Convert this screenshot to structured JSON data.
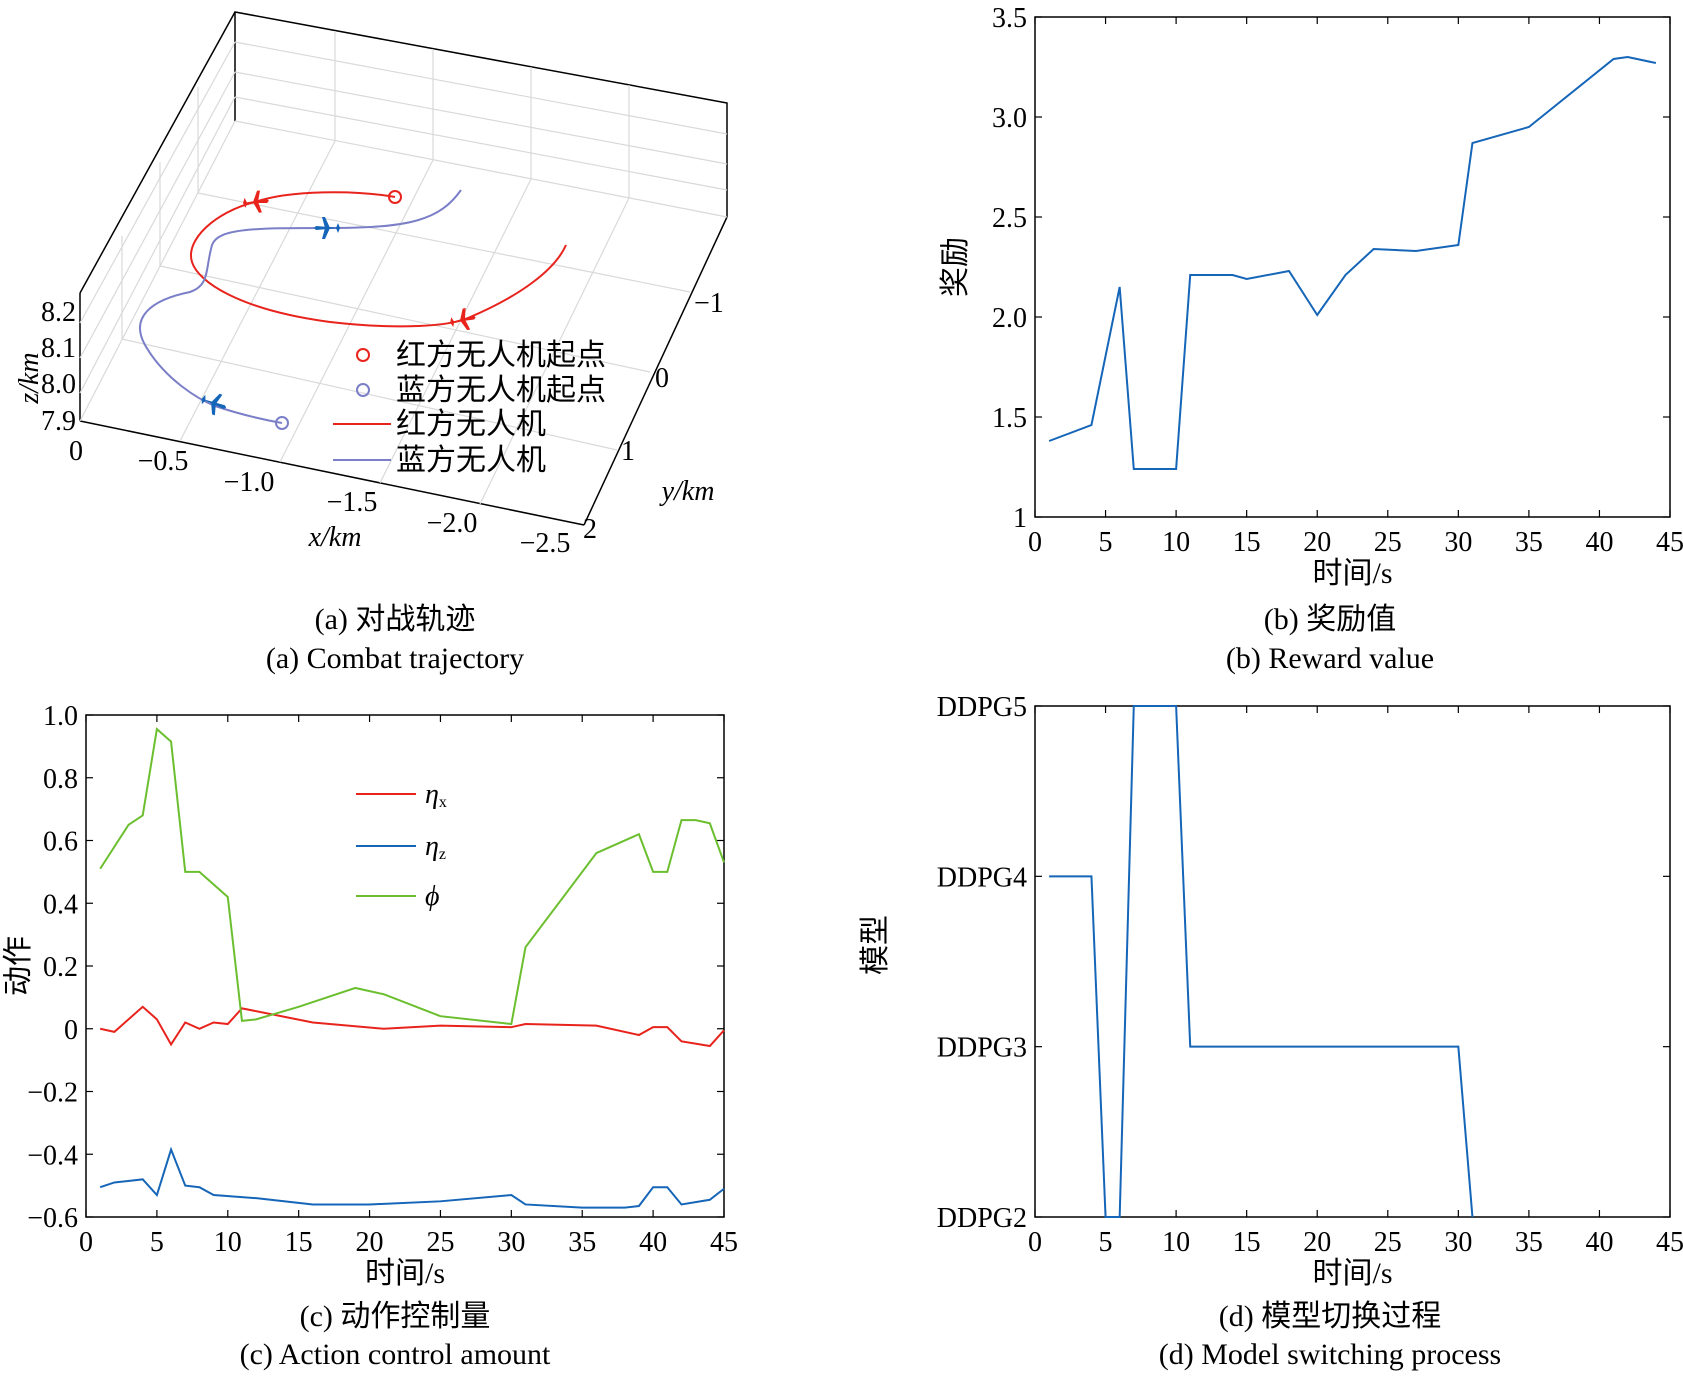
{
  "colors": {
    "red": "#e8231c",
    "blue": "#1565b8",
    "lightblue": "#7a7fc8",
    "green": "#6bbf2f",
    "axis": "#000000",
    "grid": "#d9d9d9"
  },
  "captions": {
    "a_cn": "(a) 对战轨迹",
    "a_en": "(a) Combat trajectory",
    "b_cn": "(b) 奖励值",
    "b_en": "(b) Reward value",
    "c_cn": "(c) 动作控制量",
    "c_en": "(c) Action control amount",
    "d_cn": "(d) 模型切换过程",
    "d_en": "(d) Model switching process"
  },
  "chart_data": [
    {
      "id": "a",
      "type": "line",
      "projection": "3d",
      "xlabel": "x/km",
      "ylabel": "y/km",
      "zlabel": "z/km",
      "x_ticks": [
        "0",
        "−0.5",
        "−1.0",
        "−1.5",
        "−2.0",
        "−2.5"
      ],
      "y_ticks": [
        "−1",
        "0",
        "1",
        "2"
      ],
      "z_ticks": [
        "7.9",
        "8.0",
        "8.1",
        "8.2"
      ],
      "legend": [
        {
          "label": "红方无人机起点",
          "marker": "circle",
          "color": "red"
        },
        {
          "label": "蓝方无人机起点",
          "marker": "circle",
          "color": "lightblue"
        },
        {
          "label": "红方无人机",
          "marker": "line",
          "color": "red"
        },
        {
          "label": "蓝方无人机",
          "marker": "line",
          "color": "lightblue"
        }
      ],
      "legend_position": "right"
    },
    {
      "id": "b",
      "type": "line",
      "xlabel": "时间/s",
      "ylabel": "奖励",
      "xlim": [
        0,
        45
      ],
      "ylim": [
        1,
        3.5
      ],
      "x_ticks": [
        "0",
        "5",
        "10",
        "15",
        "20",
        "25",
        "30",
        "35",
        "40",
        "45"
      ],
      "y_ticks": [
        "1",
        "1.5",
        "2.0",
        "2.5",
        "3.0",
        "3.5"
      ],
      "series": [
        {
          "color": "blue",
          "x": [
            1,
            4,
            6,
            7,
            10,
            11,
            14,
            15,
            18,
            20,
            22,
            24,
            27,
            30,
            31,
            35,
            41,
            42,
            44
          ],
          "y": [
            1.38,
            1.46,
            2.15,
            1.24,
            1.24,
            2.21,
            2.21,
            2.19,
            2.23,
            2.01,
            2.21,
            2.34,
            2.33,
            2.36,
            2.87,
            2.95,
            3.29,
            3.3,
            3.27
          ]
        }
      ]
    },
    {
      "id": "c",
      "type": "line",
      "xlabel": "时间/s",
      "ylabel": "动作",
      "xlim": [
        0,
        45
      ],
      "ylim": [
        -0.6,
        1.0
      ],
      "x_ticks": [
        "0",
        "5",
        "10",
        "15",
        "20",
        "25",
        "30",
        "35",
        "40",
        "45"
      ],
      "y_ticks": [
        "−0.6",
        "−0.4",
        "−0.2",
        "0",
        "0.2",
        "0.4",
        "0.6",
        "0.8",
        "1.0"
      ],
      "legend_position": "top-center",
      "series": [
        {
          "name": "η",
          "sub": "x",
          "color": "red",
          "x": [
            1,
            2,
            4,
            5,
            6,
            7,
            8,
            9,
            10,
            11,
            16,
            21,
            25,
            30,
            31,
            36,
            39,
            40,
            41,
            42,
            44,
            45
          ],
          "y": [
            0.0,
            -0.01,
            0.07,
            0.03,
            -0.05,
            0.02,
            0.0,
            0.02,
            0.015,
            0.065,
            0.02,
            0.0,
            0.01,
            0.005,
            0.015,
            0.01,
            -0.02,
            0.005,
            0.005,
            -0.04,
            -0.055,
            -0.005
          ]
        },
        {
          "name": "η",
          "sub": "z",
          "color": "blue",
          "x": [
            1,
            2,
            4,
            5,
            6,
            7,
            8,
            9,
            12,
            16,
            20,
            25,
            30,
            31,
            35,
            38,
            39,
            40,
            41,
            42,
            44,
            45
          ],
          "y": [
            -0.505,
            -0.49,
            -0.48,
            -0.53,
            -0.385,
            -0.5,
            -0.505,
            -0.53,
            -0.54,
            -0.56,
            -0.56,
            -0.55,
            -0.53,
            -0.56,
            -0.57,
            -0.57,
            -0.565,
            -0.505,
            -0.505,
            -0.56,
            -0.545,
            -0.51
          ]
        },
        {
          "name": "ϕ",
          "sub": "",
          "color": "green",
          "x": [
            1,
            3,
            4,
            5,
            6,
            7,
            8,
            10,
            11,
            12,
            15,
            19,
            21,
            25,
            30,
            31,
            36,
            39,
            40,
            41,
            42,
            43,
            44,
            45
          ],
          "y": [
            0.51,
            0.65,
            0.68,
            0.955,
            0.915,
            0.5,
            0.5,
            0.42,
            0.025,
            0.03,
            0.07,
            0.13,
            0.11,
            0.04,
            0.015,
            0.26,
            0.56,
            0.62,
            0.5,
            0.5,
            0.665,
            0.665,
            0.655,
            0.53
          ]
        }
      ]
    },
    {
      "id": "d",
      "type": "line",
      "xlabel": "时间/s",
      "ylabel": "模型",
      "xlim": [
        0,
        45
      ],
      "ylim": [
        2,
        5
      ],
      "x_ticks": [
        "0",
        "5",
        "10",
        "15",
        "20",
        "25",
        "30",
        "35",
        "40",
        "45"
      ],
      "y_ticks": [
        "DDPG2",
        "DDPG3",
        "DDPG4",
        "DDPG5"
      ],
      "series": [
        {
          "color": "blue",
          "x": [
            1,
            4,
            5,
            6,
            7,
            10,
            11,
            30,
            31
          ],
          "y": [
            4,
            4,
            2,
            2,
            5,
            5,
            3,
            3,
            2
          ]
        }
      ]
    }
  ]
}
